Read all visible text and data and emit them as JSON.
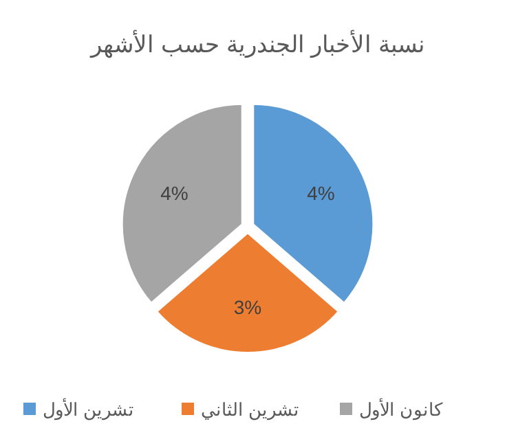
{
  "chart_data": {
    "type": "pie",
    "title": "نسبة الأخبار الجندرية حسب الأشهر",
    "categories": [
      "تشرين الأول",
      "تشرين الثاني",
      "كانون الأول"
    ],
    "values": [
      4,
      3,
      4
    ],
    "colors": [
      "#5b9bd5",
      "#ed7d31",
      "#a5a5a5"
    ],
    "value_labels": [
      "4%",
      "3%",
      "4%"
    ],
    "legend": "bottom"
  }
}
